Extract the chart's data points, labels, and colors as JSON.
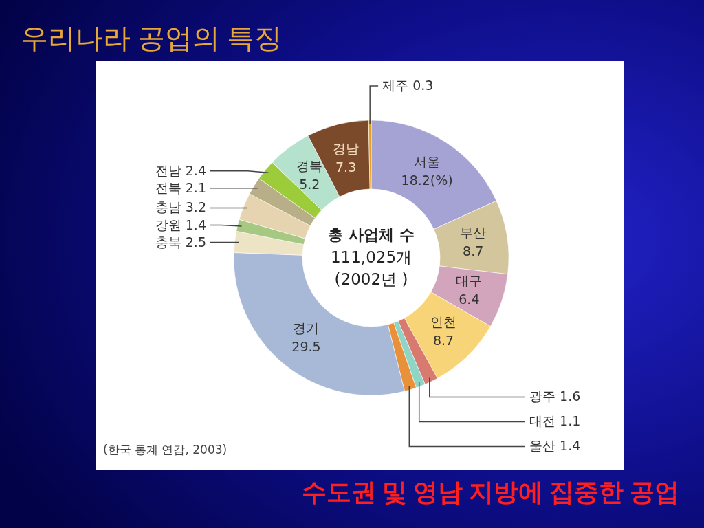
{
  "chart_data": {
    "type": "donut",
    "title": "우리나라 공업의 특징",
    "subtitle": "수도권 및 영남 지방에 집중한 공업",
    "categories": [
      "서울",
      "부산",
      "대구",
      "인천",
      "광주",
      "대전",
      "울산",
      "경기",
      "충북",
      "강원",
      "충남",
      "전북",
      "전남",
      "경북",
      "경남",
      "제주"
    ],
    "values": [
      18.2,
      8.7,
      6.4,
      8.7,
      1.6,
      1.1,
      1.4,
      29.5,
      2.5,
      1.4,
      3.2,
      2.1,
      2.4,
      5.2,
      7.3,
      0.3
    ],
    "value_labels": [
      "18.2(%)",
      "8.7",
      "6.4",
      "8.7",
      "1.6",
      "1.1",
      "1.4",
      "29.5",
      "2.5",
      "1.4",
      "3.2",
      "2.1",
      "2.4",
      "5.2",
      "7.3",
      "0.3"
    ],
    "colors": [
      "#a4a3d3",
      "#d3c59c",
      "#d3a5bd",
      "#f7d478",
      "#d87a70",
      "#8fd4c4",
      "#e8913a",
      "#a7b9d6",
      "#ede3c5",
      "#a6c882",
      "#e6d4b0",
      "#b8af88",
      "#9ccc3a",
      "#b4e2cc",
      "#7b4a2a",
      "#e5a020"
    ],
    "annotations": [
      "총 사업체 수\n111,025개\n(2002년 )",
      "(한국 통계 연감, 2003)"
    ]
  }
}
